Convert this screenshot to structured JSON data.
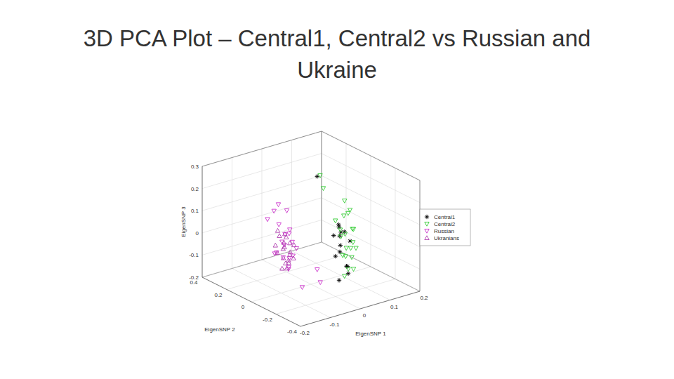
{
  "chart_data": {
    "type": "scatter3d",
    "title": "3D PCA Plot – Central1, Central2 vs Russian and Ukraine",
    "x_label": "EigenSNP 1",
    "y_label": "EigenSNP 2",
    "z_label": "EigenSNP 3",
    "xlim": [
      -0.2,
      0.2
    ],
    "xticks": [
      -0.2,
      -0.1,
      0,
      0.1,
      0.2
    ],
    "ylim": [
      -0.4,
      0.4
    ],
    "yticks": [
      -0.4,
      -0.2,
      0,
      0.2,
      0.4
    ],
    "zlim": [
      -0.2,
      0.3
    ],
    "zticks": [
      -0.2,
      -0.1,
      0,
      0.1,
      0.2,
      0.3
    ],
    "grid": true,
    "legend": "right",
    "series": [
      {
        "name": "Central1",
        "color": "#000000",
        "marker": "asterisk",
        "x": [
          0.02,
          0.03,
          0.01,
          0.04,
          0.02,
          0.03,
          0.01,
          0.02,
          0.04,
          0.03,
          0.02,
          0.01,
          0.03,
          0.0,
          0.02
        ],
        "y": [
          -0.18,
          -0.2,
          -0.16,
          -0.22,
          -0.19,
          -0.17,
          -0.21,
          -0.15,
          -0.2,
          -0.23,
          -0.18,
          -0.2,
          -0.16,
          -0.05,
          -0.24
        ],
        "z": [
          0.1,
          0.08,
          0.06,
          0.04,
          0.02,
          0.07,
          0.0,
          -0.04,
          -0.08,
          -0.1,
          -0.14,
          0.12,
          0.05,
          0.3,
          -0.06
        ]
      },
      {
        "name": "Central2",
        "color": "#33cc33",
        "marker": "triangle-down",
        "x": [
          0.03,
          0.04,
          0.05,
          0.02,
          0.04,
          0.06,
          0.03,
          0.05,
          0.04,
          0.02,
          0.05,
          0.03,
          0.06,
          0.04,
          0.03,
          0.05,
          0.02,
          0.04,
          0.06,
          0.03,
          0.01,
          0.0
        ],
        "y": [
          -0.2,
          -0.22,
          -0.18,
          -0.15,
          -0.24,
          -0.2,
          -0.17,
          -0.22,
          -0.19,
          -0.21,
          -0.16,
          -0.23,
          -0.2,
          -0.18,
          -0.25,
          -0.21,
          -0.19,
          -0.17,
          -0.22,
          -0.2,
          -0.05,
          -0.1
        ],
        "z": [
          0.22,
          0.18,
          0.15,
          0.12,
          0.1,
          0.08,
          0.05,
          0.03,
          0.0,
          -0.02,
          -0.05,
          -0.08,
          -0.1,
          0.06,
          0.02,
          -0.04,
          0.09,
          0.14,
          0.0,
          -0.12,
          0.3,
          0.26
        ]
      },
      {
        "name": "Russian",
        "color": "#cc33cc",
        "marker": "triangle-down",
        "x": [
          -0.06,
          -0.04,
          -0.05,
          -0.03,
          -0.07,
          -0.05,
          -0.04,
          -0.02,
          -0.06,
          -0.05,
          -0.03,
          -0.04,
          -0.08,
          -0.05,
          -0.04,
          -0.03,
          -0.06,
          -0.02,
          -0.05,
          -0.04,
          -0.01,
          0.0
        ],
        "y": [
          0.12,
          0.1,
          0.14,
          0.08,
          0.11,
          0.09,
          0.13,
          0.07,
          0.15,
          0.06,
          0.1,
          0.12,
          0.16,
          0.18,
          0.05,
          0.11,
          0.09,
          0.13,
          -0.05,
          0.08,
          -0.1,
          -0.05
        ],
        "z": [
          0.15,
          0.12,
          0.05,
          -0.02,
          -0.06,
          0.02,
          -0.1,
          -0.05,
          -0.08,
          -0.12,
          0.03,
          -0.04,
          0.08,
          0.1,
          -0.07,
          -0.15,
          -0.01,
          0.0,
          -0.18,
          -0.09,
          -0.16,
          -0.12
        ]
      },
      {
        "name": "Ukranians",
        "color": "#b040b0",
        "marker": "triangle",
        "x": [
          -0.05,
          -0.04,
          -0.06,
          -0.03,
          -0.05,
          -0.04,
          -0.02,
          -0.06,
          -0.05,
          -0.03,
          -0.04,
          -0.07,
          -0.05,
          -0.03,
          -0.04,
          -0.06,
          -0.02,
          -0.05,
          -0.04,
          -0.03
        ],
        "y": [
          0.1,
          0.12,
          0.08,
          0.14,
          0.06,
          0.11,
          0.09,
          0.13,
          0.15,
          0.07,
          0.1,
          0.12,
          0.05,
          0.11,
          0.16,
          0.09,
          0.12,
          0.08,
          0.13,
          0.1
        ],
        "z": [
          -0.02,
          -0.05,
          -0.08,
          0.0,
          -0.1,
          -0.12,
          -0.04,
          -0.07,
          0.02,
          -0.09,
          -0.14,
          -0.03,
          -0.06,
          -0.11,
          -0.01,
          -0.13,
          -0.08,
          0.01,
          -0.06,
          -0.03
        ]
      }
    ]
  }
}
